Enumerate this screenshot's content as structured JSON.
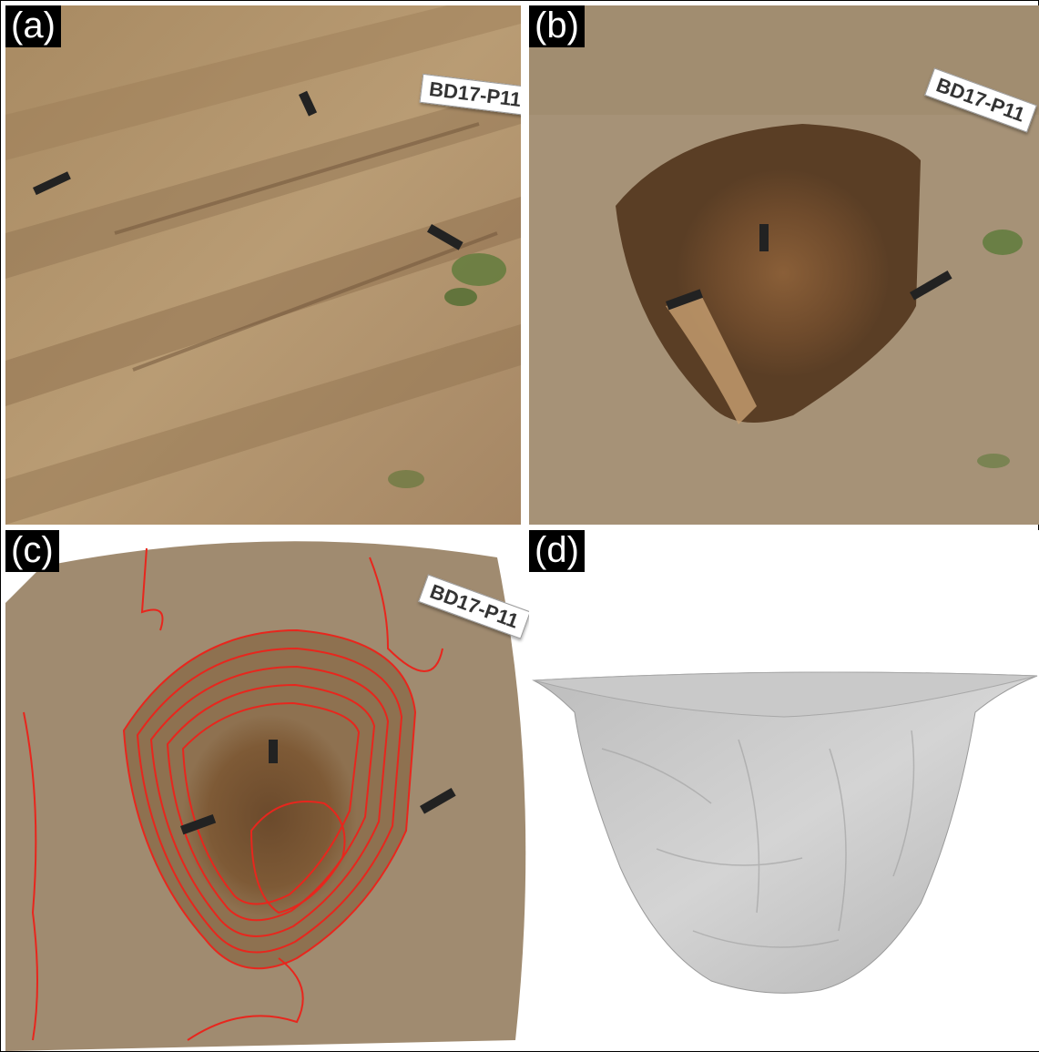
{
  "panels": [
    {
      "label": "(a)",
      "tag": "BD17-P11"
    },
    {
      "label": "(b)",
      "tag": "BD17-P11"
    },
    {
      "label": "(c)",
      "tag": "BD17-P11"
    },
    {
      "label": "(d)"
    }
  ],
  "colors": {
    "soil_light": "#b89a72",
    "soil_dark": "#7a5a3a",
    "contour": "#e8261d",
    "mesh": "#c8c8c8"
  }
}
